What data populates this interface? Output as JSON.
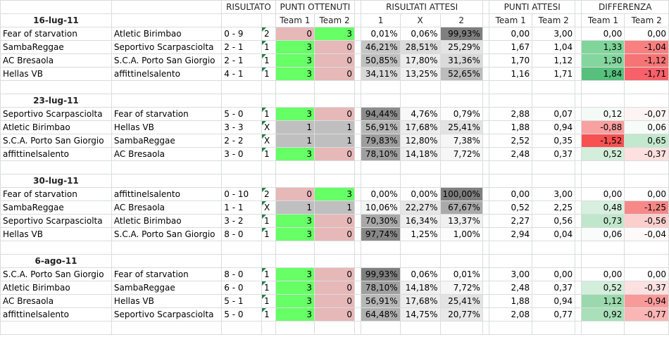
{
  "header": {
    "risultato": "RISULTATO",
    "punti_ottenuti": "PUNTI OTTENUTI",
    "risultati_attesi": "RISULTATI ATTESI",
    "punti_attesi": "PUNTI ATTESI",
    "differenza": "DIFFERENZA",
    "sub": [
      "Team 1",
      "Team 2",
      "1",
      "X",
      "2",
      "Team 1",
      "Team 2",
      "Team 1",
      "Team 2"
    ]
  },
  "colors": {
    "green": "#66ff66",
    "pink": "#e6b8b8",
    "gray": "#bfbfbf",
    "grid": "#dadcdd"
  },
  "rounds": [
    {
      "date": "16-lug-11",
      "matches": [
        {
          "team1": "Fear of starvation",
          "team2": "Atletic Birimbao",
          "score": "0 - 9",
          "sign": "2",
          "p1": "0",
          "p2": "3",
          "r1": "0,01%",
          "rx": "0,06%",
          "r2": "99,93%",
          "a1": "0,00",
          "a2": "3,00",
          "d1": "0,00",
          "d2": "0,00",
          "pc": [
            "#e6b8b8",
            "#66ff66"
          ],
          "rc": [
            "#ffffff",
            "#ffffff",
            "#7f7f7f"
          ],
          "dc": [
            "#ffffff",
            "#ffffff"
          ]
        },
        {
          "team1": "SambaReggae",
          "team2": "Seportivo Scarpasciolta",
          "score": "2 - 1",
          "sign": "1",
          "p1": "3",
          "p2": "0",
          "r1": "46,21%",
          "rx": "28,51%",
          "r2": "25,29%",
          "a1": "1,67",
          "a2": "1,04",
          "d1": "1,33",
          "d2": "-1,04",
          "pc": [
            "#66ff66",
            "#e6b8b8"
          ],
          "rc": [
            "#c6c6c6",
            "#dcdcdc",
            "#e4e4e4"
          ],
          "dc": [
            "#7fd59a",
            "#f88080"
          ]
        },
        {
          "team1": "AC Bresaola",
          "team2": "S.C.A. Porto San Giorgio",
          "score": "2 - 1",
          "sign": "1",
          "p1": "3",
          "p2": "0",
          "r1": "50,85%",
          "rx": "17,80%",
          "r2": "31,36%",
          "a1": "1,70",
          "a2": "1,12",
          "d1": "1,30",
          "d2": "-1,12",
          "pc": [
            "#66ff66",
            "#e6b8b8"
          ],
          "rc": [
            "#bfbfbf",
            "#ececec",
            "#dadada"
          ],
          "dc": [
            "#83d69d",
            "#f67474"
          ]
        },
        {
          "team1": "Hellas VB",
          "team2": "affittinelsalento",
          "score": "4 - 1",
          "sign": "1",
          "p1": "3",
          "p2": "0",
          "r1": "34,11%",
          "rx": "13,25%",
          "r2": "52,65%",
          "a1": "1,16",
          "a2": "1,71",
          "d1": "1,84",
          "d2": "-1,71",
          "pc": [
            "#66ff66",
            "#e6b8b8"
          ],
          "rc": [
            "#d8d8d8",
            "#f0f0f0",
            "#bcbcbc"
          ],
          "dc": [
            "#57c07c",
            "#f6616a"
          ]
        }
      ]
    },
    {
      "date": "23-lug-11",
      "matches": [
        {
          "team1": "Seportivo Scarpasciolta",
          "team2": "Fear of starvation",
          "score": "5 - 0",
          "sign": "1",
          "p1": "3",
          "p2": "0",
          "r1": "94,44%",
          "rx": "4,76%",
          "r2": "0,79%",
          "a1": "2,88",
          "a2": "0,07",
          "d1": "0,12",
          "d2": "-0,07",
          "pc": [
            "#66ff66",
            "#e6b8b8"
          ],
          "rc": [
            "#8c8c8c",
            "#f8f8f8",
            "#fdfdfd"
          ],
          "dc": [
            "#f4fbf6",
            "#fdf4f4"
          ]
        },
        {
          "team1": "Atletic Birimbao",
          "team2": "Hellas VB",
          "score": "3 - 3",
          "sign": "X",
          "p1": "1",
          "p2": "1",
          "r1": "56,91%",
          "rx": "17,68%",
          "r2": "25,41%",
          "a1": "1,88",
          "a2": "0,94",
          "d1": "-0,88",
          "d2": "0,06",
          "pc": [
            "#bfbfbf",
            "#bfbfbf"
          ],
          "rc": [
            "#b7b7b7",
            "#ececec",
            "#e3e3e3"
          ],
          "dc": [
            "#f9a0a0",
            "#f8fcf9"
          ]
        },
        {
          "team1": "S.C.A. Porto San Giorgio",
          "team2": "SambaReggae",
          "score": "2 - 2",
          "sign": "X",
          "p1": "1",
          "p2": "1",
          "r1": "79,83%",
          "rx": "12,80%",
          "r2": "7,38%",
          "a1": "2,52",
          "a2": "0,35",
          "d1": "-1,52",
          "d2": "0,65",
          "pc": [
            "#bfbfbf",
            "#bfbfbf"
          ],
          "rc": [
            "#9d9d9d",
            "#f1f1f1",
            "#f6f6f6"
          ],
          "dc": [
            "#f75151",
            "#c2e8ce"
          ]
        },
        {
          "team1": "affittinelsalento",
          "team2": "AC Bresaola",
          "score": "3 - 0",
          "sign": "1",
          "p1": "3",
          "p2": "0",
          "r1": "78,10%",
          "rx": "14,18%",
          "r2": "7,72%",
          "a1": "2,48",
          "a2": "0,37",
          "d1": "0,52",
          "d2": "-0,37",
          "pc": [
            "#66ff66",
            "#e6b8b8"
          ],
          "rc": [
            "#9f9f9f",
            "#efefef",
            "#f6f6f6"
          ],
          "dc": [
            "#d3eedb",
            "#fde0e0"
          ]
        }
      ]
    },
    {
      "date": "30-lug-11",
      "matches": [
        {
          "team1": "Fear of starvation",
          "team2": "affittinelsalento",
          "score": "0 - 10",
          "sign": "2",
          "p1": "0",
          "p2": "3",
          "r1": "0,00%",
          "rx": "0,00%",
          "r2": "100,00%",
          "a1": "0,00",
          "a2": "3,00",
          "d1": "0,00",
          "d2": "0,00",
          "pc": [
            "#e6b8b8",
            "#66ff66"
          ],
          "rc": [
            "#ffffff",
            "#ffffff",
            "#7f7f7f"
          ],
          "dc": [
            "#ffffff",
            "#ffffff"
          ]
        },
        {
          "team1": "SambaReggae",
          "team2": "AC Bresaola",
          "score": "1 - 1",
          "sign": "X",
          "p1": "1",
          "p2": "1",
          "r1": "10,06%",
          "rx": "22,27%",
          "r2": "67,67%",
          "a1": "0,52",
          "a2": "2,25",
          "d1": "0,48",
          "d2": "-1,25",
          "pc": [
            "#bfbfbf",
            "#bfbfbf"
          ],
          "rc": [
            "#f4f4f4",
            "#e6e6e6",
            "#aaaaaa"
          ],
          "dc": [
            "#d6efde",
            "#f78888"
          ]
        },
        {
          "team1": "Seportivo Scarpasciolta",
          "team2": "Atletic Birimbao",
          "score": "3 - 2",
          "sign": "1",
          "p1": "3",
          "p2": "0",
          "r1": "70,30%",
          "rx": "16,34%",
          "r2": "13,37%",
          "a1": "2,27",
          "a2": "0,56",
          "d1": "0,73",
          "d2": "-0,56",
          "pc": [
            "#66ff66",
            "#e6b8b8"
          ],
          "rc": [
            "#a8a8a8",
            "#eeeeee",
            "#f0f0f0"
          ],
          "dc": [
            "#c0e7cc",
            "#fccfcf"
          ]
        },
        {
          "team1": "Hellas VB",
          "team2": "S.C.A. Porto San Giorgio",
          "score": "8 - 0",
          "sign": "1",
          "p1": "3",
          "p2": "0",
          "r1": "97,74%",
          "rx": "1,25%",
          "r2": "1,00%",
          "a1": "2,94",
          "a2": "0,04",
          "d1": "0,06",
          "d2": "-0,04",
          "pc": [
            "#66ff66",
            "#e6b8b8"
          ],
          "rc": [
            "#878787",
            "#fcfcfc",
            "#fcfcfc"
          ],
          "dc": [
            "#f9fcfa",
            "#fefafa"
          ]
        }
      ]
    },
    {
      "date": "6-ago-11",
      "matches": [
        {
          "team1": "S.C.A. Porto San Giorgio",
          "team2": "Fear of starvation",
          "score": "8 - 0",
          "sign": "1",
          "p1": "3",
          "p2": "0",
          "r1": "99,93%",
          "rx": "0,06%",
          "r2": "0,01%",
          "a1": "3,00",
          "a2": "0,00",
          "d1": "0,00",
          "d2": "0,00",
          "pc": [
            "#66ff66",
            "#e6b8b8"
          ],
          "rc": [
            "#7f7f7f",
            "#ffffff",
            "#ffffff"
          ],
          "dc": [
            "#ffffff",
            "#ffffff"
          ]
        },
        {
          "team1": "Atletic Birimbao",
          "team2": "SambaReggae",
          "score": "6 - 0",
          "sign": "1",
          "p1": "3",
          "p2": "0",
          "r1": "78,10%",
          "rx": "14,18%",
          "r2": "7,72%",
          "a1": "2,48",
          "a2": "0,37",
          "d1": "0,52",
          "d2": "-0,37",
          "pc": [
            "#66ff66",
            "#e6b8b8"
          ],
          "rc": [
            "#9f9f9f",
            "#efefef",
            "#f6f6f6"
          ],
          "dc": [
            "#d3eedb",
            "#fde0e0"
          ]
        },
        {
          "team1": "AC Bresaola",
          "team2": "Hellas VB",
          "score": "5 - 1",
          "sign": "1",
          "p1": "3",
          "p2": "0",
          "r1": "56,91%",
          "rx": "17,68%",
          "r2": "25,41%",
          "a1": "1,88",
          "a2": "0,94",
          "d1": "1,12",
          "d2": "-0,94",
          "pc": [
            "#66ff66",
            "#e6b8b8"
          ],
          "rc": [
            "#b7b7b7",
            "#ececec",
            "#e3e3e3"
          ],
          "dc": [
            "#9ad9ad",
            "#f89a9a"
          ]
        },
        {
          "team1": "affittinelsalento",
          "team2": "Seportivo Scarpasciolta",
          "score": "5 - 0",
          "sign": "1",
          "p1": "3",
          "p2": "0",
          "r1": "64,48%",
          "rx": "14,75%",
          "r2": "20,77%",
          "a1": "2,08",
          "a2": "0,77",
          "d1": "0,92",
          "d2": "-0,77",
          "pc": [
            "#66ff66",
            "#e6b8b8"
          ],
          "rc": [
            "#afafaf",
            "#efefef",
            "#e8e8e8"
          ],
          "dc": [
            "#a9dfb9",
            "#fab5b5"
          ]
        }
      ]
    }
  ]
}
